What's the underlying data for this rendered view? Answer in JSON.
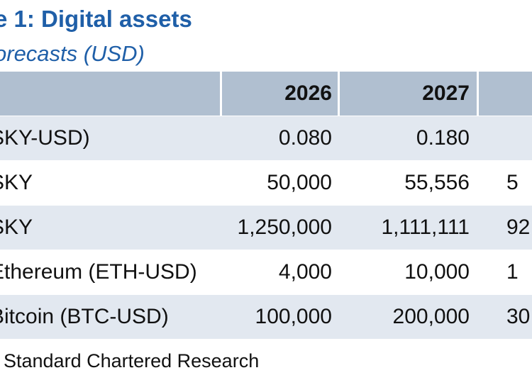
{
  "title": "e 1: Digital assets",
  "subtitle": "orecasts (USD)",
  "table": {
    "columns": [
      "",
      "2026",
      "2027",
      ""
    ],
    "rows": [
      [
        "SKY-USD)",
        "0.080",
        "0.180",
        ""
      ],
      [
        "SKY",
        "50,000",
        "55,556",
        "5"
      ],
      [
        "SKY",
        "1,250,000",
        "1,111,111",
        "92"
      ],
      [
        "Ethereum (ETH-USD)",
        "4,000",
        "10,000",
        "1"
      ],
      [
        "Bitcoin (BTC-USD)",
        "100,000",
        "200,000",
        "30"
      ]
    ]
  },
  "source": ": Standard Chartered Research",
  "colors": {
    "title": "#1f5fa8",
    "header_bg": "#b0bfd0",
    "stripe_bg": "#e2e8f0"
  }
}
